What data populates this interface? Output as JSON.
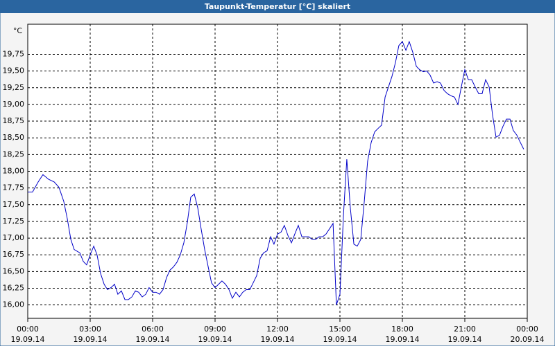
{
  "chart_data": {
    "type": "line",
    "title": "Taupunkt-Temperatur [°C] skaliert",
    "y_label": "°C",
    "x": [
      0,
      0.23,
      0.5,
      0.73,
      1,
      1.27,
      1.5,
      1.73,
      1.9,
      2.07,
      2.23,
      2.5,
      2.67,
      2.83,
      3,
      3.17,
      3.33,
      3.5,
      3.67,
      3.83,
      4,
      4.17,
      4.33,
      4.5,
      4.67,
      4.83,
      5,
      5.17,
      5.33,
      5.5,
      5.67,
      5.83,
      6,
      6.17,
      6.33,
      6.5,
      6.67,
      6.83,
      7,
      7.17,
      7.33,
      7.5,
      7.67,
      7.83,
      8,
      8.17,
      8.33,
      8.5,
      8.67,
      8.83,
      9,
      9.17,
      9.33,
      9.5,
      9.67,
      9.83,
      10,
      10.17,
      10.33,
      10.5,
      10.67,
      10.83,
      11,
      11.17,
      11.33,
      11.5,
      11.67,
      11.83,
      12,
      12.17,
      12.33,
      12.5,
      12.67,
      12.83,
      13,
      13.17,
      13.33,
      13.5,
      13.67,
      13.83,
      14,
      14.17,
      14.33,
      14.5,
      14.67,
      14.83,
      15,
      15.17,
      15.33,
      15.5,
      15.67,
      15.83,
      16,
      16.17,
      16.33,
      16.5,
      16.67,
      16.83,
      17,
      17.17,
      17.33,
      17.5,
      17.67,
      17.83,
      18,
      18.17,
      18.33,
      18.5,
      18.67,
      18.83,
      19,
      19.17,
      19.33,
      19.5,
      19.67,
      19.83,
      20,
      20.17,
      20.33,
      20.5,
      20.67,
      20.83,
      21,
      21.17,
      21.33,
      21.5,
      21.67,
      21.83,
      22,
      22.17,
      22.33,
      22.5,
      22.67,
      22.83,
      23,
      23.17,
      23.33,
      23.5,
      23.67,
      23.83
    ],
    "series": [
      {
        "name": "Taupunkt-Temperatur",
        "color": "#0000c8",
        "values": [
          17.69,
          17.69,
          17.84,
          17.95,
          17.88,
          17.84,
          17.76,
          17.55,
          17.29,
          16.98,
          16.83,
          16.78,
          16.65,
          16.6,
          16.75,
          16.88,
          16.75,
          16.47,
          16.31,
          16.23,
          16.26,
          16.31,
          16.16,
          16.21,
          16.08,
          16.08,
          16.12,
          16.21,
          16.19,
          16.12,
          16.16,
          16.26,
          16.19,
          16.19,
          16.16,
          16.23,
          16.41,
          16.52,
          16.57,
          16.64,
          16.75,
          16.93,
          17.24,
          17.61,
          17.66,
          17.45,
          17.14,
          16.83,
          16.57,
          16.33,
          16.26,
          16.31,
          16.36,
          16.31,
          16.23,
          16.1,
          16.19,
          16.12,
          16.19,
          16.23,
          16.23,
          16.33,
          16.44,
          16.7,
          16.78,
          16.81,
          17.02,
          16.91,
          17.06,
          17.09,
          17.19,
          17.04,
          16.93,
          17.06,
          17.19,
          17.02,
          17.02,
          17.02,
          16.98,
          16.98,
          17.02,
          17.02,
          17.06,
          17.14,
          17.22,
          16.0,
          16.16,
          17.35,
          18.18,
          17.45,
          16.91,
          16.88,
          16.98,
          17.55,
          18.15,
          18.43,
          18.59,
          18.64,
          18.69,
          19.11,
          19.26,
          19.42,
          19.63,
          19.88,
          19.94,
          19.81,
          19.94,
          19.78,
          19.57,
          19.52,
          19.49,
          19.5,
          19.44,
          19.32,
          19.34,
          19.32,
          19.21,
          19.16,
          19.13,
          19.11,
          19.0,
          19.26,
          19.52,
          19.37,
          19.37,
          19.26,
          19.16,
          19.16,
          19.37,
          19.26,
          18.85,
          18.51,
          18.54,
          18.67,
          18.78,
          18.78,
          18.61,
          18.54,
          18.43,
          18.33
        ]
      }
    ],
    "xlim": [
      0,
      24
    ],
    "xticks": [
      {
        "value": 0,
        "label": "00:00",
        "date": "19.09.14"
      },
      {
        "value": 3,
        "label": "03:00",
        "date": "19.09.14"
      },
      {
        "value": 6,
        "label": "06:00",
        "date": "19.09.14"
      },
      {
        "value": 9,
        "label": "09:00",
        "date": "19.09.14"
      },
      {
        "value": 12,
        "label": "12:00",
        "date": "19.09.14"
      },
      {
        "value": 15,
        "label": "15:00",
        "date": "19.09.14"
      },
      {
        "value": 18,
        "label": "18:00",
        "date": "19.09.14"
      },
      {
        "value": 21,
        "label": "21:00",
        "date": "19.09.14"
      },
      {
        "value": 24,
        "label": "00:00",
        "date": "20.09.14"
      }
    ],
    "ylim": [
      15.8,
      20.2
    ],
    "yticks": [
      {
        "value": 16,
        "label": "16,00"
      },
      {
        "value": 16.25,
        "label": "16,25"
      },
      {
        "value": 16.5,
        "label": "16,50"
      },
      {
        "value": 16.75,
        "label": "16,75"
      },
      {
        "value": 17,
        "label": "17,00"
      },
      {
        "value": 17.25,
        "label": "17,25"
      },
      {
        "value": 17.5,
        "label": "17,50"
      },
      {
        "value": 17.75,
        "label": "17,75"
      },
      {
        "value": 18,
        "label": "18,00"
      },
      {
        "value": 18.25,
        "label": "18,25"
      },
      {
        "value": 18.5,
        "label": "18,50"
      },
      {
        "value": 18.75,
        "label": "18,75"
      },
      {
        "value": 19,
        "label": "19,00"
      },
      {
        "value": 19.25,
        "label": "19,25"
      },
      {
        "value": 19.5,
        "label": "19,50"
      },
      {
        "value": 19.75,
        "label": "19,75"
      }
    ],
    "grid": true
  }
}
